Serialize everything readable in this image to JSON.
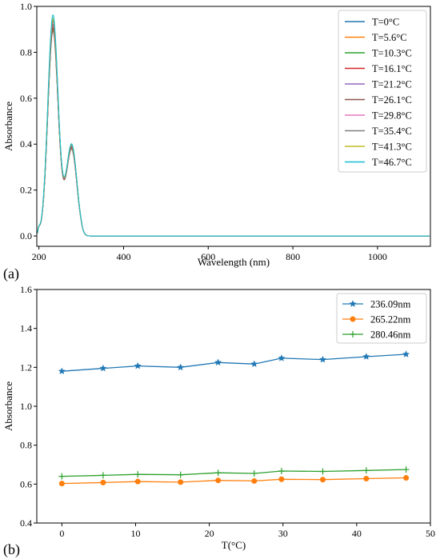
{
  "chart_data": [
    {
      "id": "a",
      "panel_label": "(a)",
      "type": "line",
      "title": "",
      "xlabel": "Wavelength (nm)",
      "ylabel": "Absorbance",
      "xlim": [
        195,
        1125
      ],
      "ylim": [
        -0.045,
        1.0
      ],
      "xticks": [
        200,
        400,
        600,
        800,
        1000
      ],
      "yticks": [
        0.0,
        0.2,
        0.4,
        0.6,
        0.8,
        1.0
      ],
      "grid": false,
      "legend_position": "top-right",
      "series": [
        {
          "name": "T=0°C",
          "color": "#1f77b4",
          "peak1": 0.88,
          "peak2": 0.355
        },
        {
          "name": "T=5.6°C",
          "color": "#ff7f0e",
          "peak1": 0.885,
          "peak2": 0.357
        },
        {
          "name": "T=10.3°C",
          "color": "#2ca02c",
          "peak1": 0.89,
          "peak2": 0.36
        },
        {
          "name": "T=16.1°C",
          "color": "#d62728",
          "peak1": 0.895,
          "peak2": 0.362
        },
        {
          "name": "T=21.2°C",
          "color": "#9467bd",
          "peak1": 0.905,
          "peak2": 0.365
        },
        {
          "name": "T=26.1°C",
          "color": "#8c564b",
          "peak1": 0.91,
          "peak2": 0.367
        },
        {
          "name": "T=29.8°C",
          "color": "#e377c2",
          "peak1": 0.92,
          "peak2": 0.37
        },
        {
          "name": "T=35.4°C",
          "color": "#7f7f7f",
          "peak1": 0.925,
          "peak2": 0.372
        },
        {
          "name": "T=41.3°C",
          "color": "#bcbd22",
          "peak1": 0.935,
          "peak2": 0.375
        },
        {
          "name": "T=46.7°C",
          "color": "#17becf",
          "peak1": 0.95,
          "peak2": 0.378
        }
      ]
    },
    {
      "id": "b",
      "panel_label": "(b)",
      "type": "line",
      "title": "",
      "xlabel": "T(°C)",
      "ylabel": "Absorbance",
      "xlim": [
        -3.4,
        50
      ],
      "ylim": [
        0.4,
        1.6
      ],
      "xticks": [
        0,
        10,
        20,
        30,
        40,
        50
      ],
      "yticks": [
        0.4,
        0.6,
        0.8,
        1.0,
        1.2,
        1.4,
        1.6
      ],
      "grid": false,
      "legend_position": "top-right",
      "x": [
        0,
        5.6,
        10.3,
        16.1,
        21.2,
        26.1,
        29.8,
        35.4,
        41.3,
        46.7
      ],
      "series": [
        {
          "name": "236.09nm",
          "color": "#1f77b4",
          "marker": "star",
          "values": [
            1.18,
            1.195,
            1.207,
            1.2,
            1.225,
            1.217,
            1.247,
            1.24,
            1.255,
            1.267
          ]
        },
        {
          "name": "265.22nm",
          "color": "#ff7f0e",
          "marker": "circle",
          "values": [
            0.603,
            0.608,
            0.613,
            0.61,
            0.619,
            0.616,
            0.625,
            0.623,
            0.628,
            0.632
          ]
        },
        {
          "name": "280.46nm",
          "color": "#2ca02c",
          "marker": "plus",
          "values": [
            0.64,
            0.645,
            0.65,
            0.648,
            0.658,
            0.655,
            0.667,
            0.665,
            0.67,
            0.675
          ]
        }
      ]
    }
  ]
}
